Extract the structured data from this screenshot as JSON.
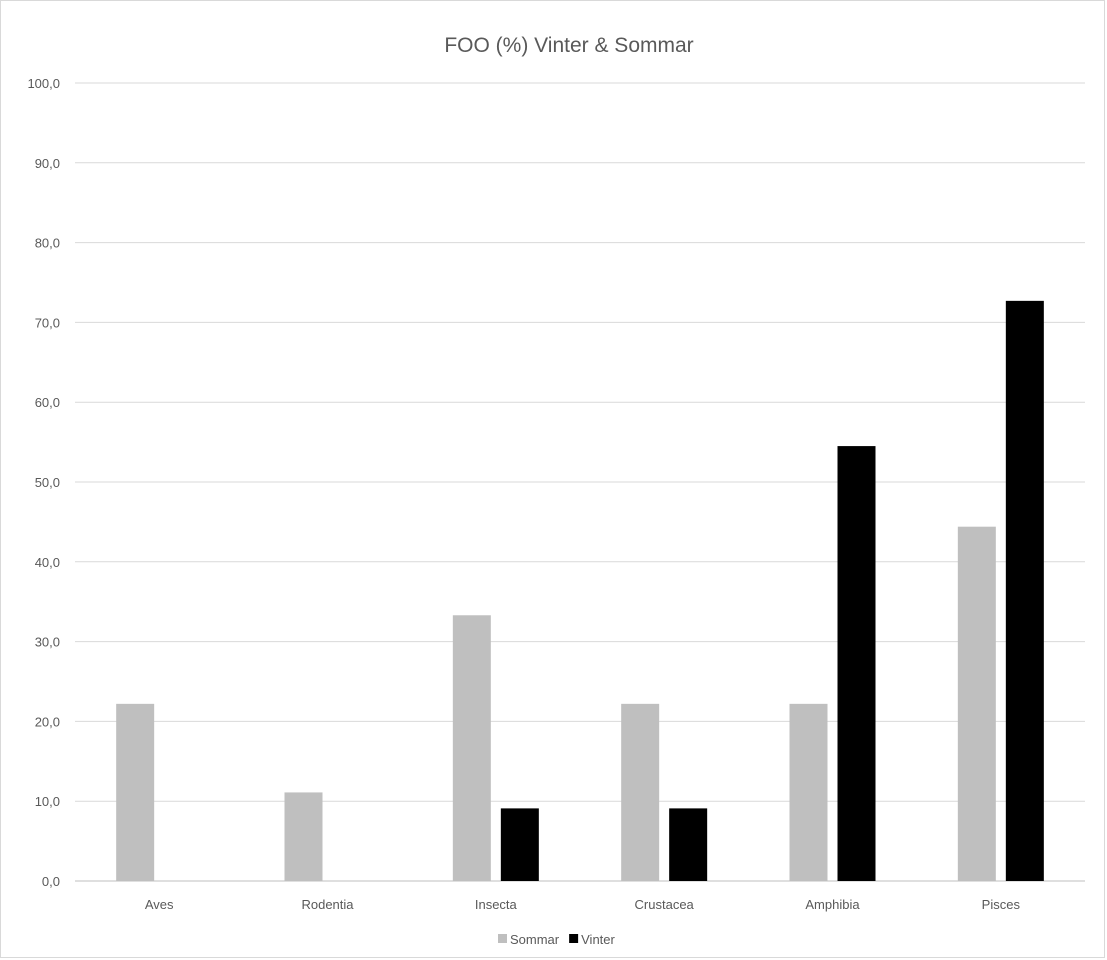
{
  "chart_data": {
    "type": "bar",
    "title": "FOO (%) Vinter & Sommar",
    "xlabel": "",
    "ylabel": "",
    "categories": [
      "Aves",
      "Rodentia",
      "Insecta",
      "Crustacea",
      "Amphibia",
      "Pisces"
    ],
    "series": [
      {
        "name": "Sommar",
        "color": "#bfbfbf",
        "values": [
          22.2,
          11.1,
          33.3,
          22.2,
          22.2,
          44.4
        ]
      },
      {
        "name": "Vinter",
        "color": "#000000",
        "values": [
          0.0,
          0.0,
          9.1,
          9.1,
          54.5,
          72.7
        ]
      }
    ],
    "ylim": [
      0,
      100
    ],
    "yticks": [
      "0,0",
      "10,0",
      "20,0",
      "30,0",
      "40,0",
      "50,0",
      "60,0",
      "70,0",
      "80,0",
      "90,0",
      "100,0"
    ],
    "grid": true,
    "legend_position": "bottom"
  }
}
